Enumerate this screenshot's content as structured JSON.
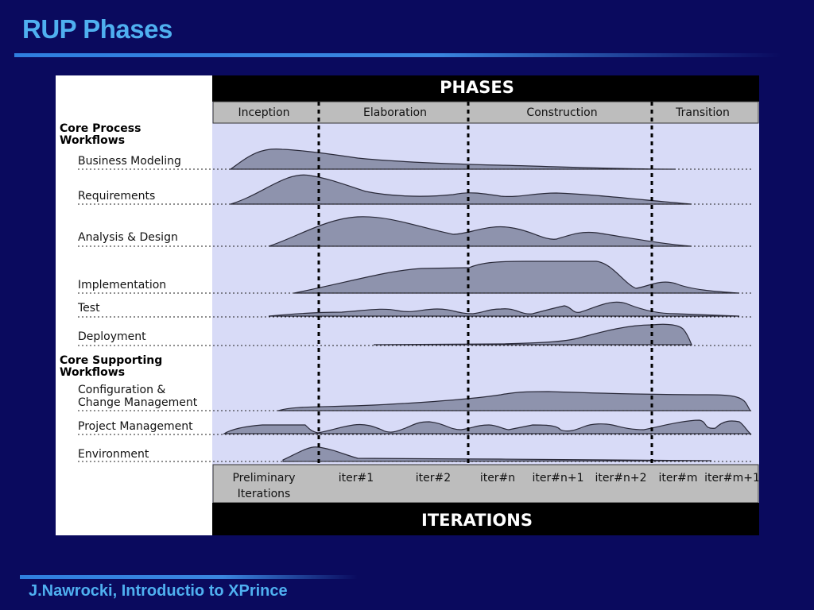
{
  "slide": {
    "title": "RUP Phases",
    "footer": "J.Nawrocki, Introductio to XPrince"
  },
  "diagram": {
    "header": "PHASES",
    "footer_header": "ITERATIONS",
    "phases": [
      "Inception",
      "Elaboration",
      "Construction",
      "Transition"
    ],
    "group_core_process": [
      "Core Process",
      "Workflows"
    ],
    "group_core_supporting": [
      "Core Supporting",
      "Workflows"
    ],
    "workflows": [
      [
        "Business  Modeling"
      ],
      [
        "Requirements"
      ],
      [
        "Analysis  &  Design"
      ],
      [
        "Implementation"
      ],
      [
        "Test"
      ],
      [
        "Deployment"
      ],
      [
        "Configuration  &",
        "Change  Management"
      ],
      [
        "Project  Management"
      ],
      [
        "Environment"
      ]
    ],
    "iterations": [
      [
        "Preliminary",
        "Iterations"
      ],
      [
        "iter#1"
      ],
      [
        "iter#2"
      ],
      [
        "iter#n"
      ],
      [
        "iter#n+1"
      ],
      [
        "iter#n+2"
      ],
      [
        "iter#m"
      ],
      [
        "iter#m+1"
      ]
    ]
  },
  "colors": {
    "background": "#0a0a5e",
    "title": "#4fb0f0",
    "chart_bg": "#d8dbf7",
    "hump_fill": "#8e93ad",
    "phase_bar": "#bdbdbd",
    "iteration_bar": "#bdbdbd",
    "header_bar": "#000000"
  }
}
